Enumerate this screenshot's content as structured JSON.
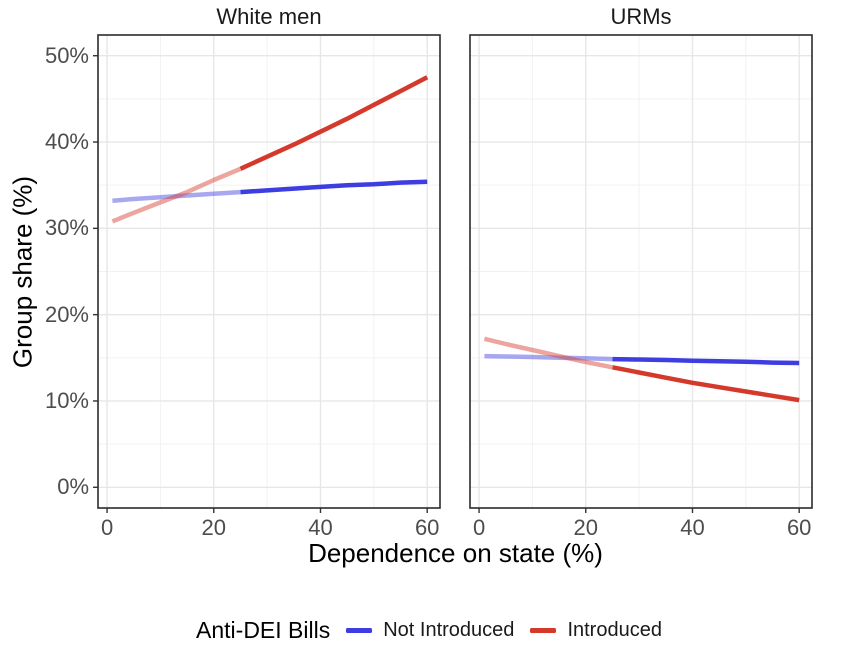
{
  "chart_data": {
    "type": "line",
    "xlabel": "Dependence on state (%)",
    "ylabel": "Group share (%)",
    "xlim": [
      -1.7,
      62.4
    ],
    "ylim": [
      -2.4,
      52.4
    ],
    "grid": true,
    "legend_position": "bottom",
    "x_ticks": [
      {
        "value": 0,
        "label": "0"
      },
      {
        "value": 20,
        "label": "20"
      },
      {
        "value": 40,
        "label": "40"
      },
      {
        "value": 60,
        "label": "60"
      }
    ],
    "x_minor": [
      10,
      30,
      50
    ],
    "y_ticks": [
      {
        "value": 0,
        "label": "0%"
      },
      {
        "value": 10,
        "label": "10%"
      },
      {
        "value": 20,
        "label": "20%"
      },
      {
        "value": 30,
        "label": "30%"
      },
      {
        "value": 40,
        "label": "40%"
      },
      {
        "value": 50,
        "label": "50%"
      }
    ],
    "y_minor": [
      5,
      15,
      25,
      35,
      45
    ],
    "facets": [
      {
        "title": "White men",
        "series": [
          {
            "name": "Not Introduced",
            "color": "#3D3DE1",
            "points": [
              [
                1,
                33.2
              ],
              [
                5,
                33.4
              ],
              [
                10,
                33.6
              ],
              [
                15,
                33.8
              ],
              [
                20,
                34.0
              ],
              [
                25,
                34.2
              ],
              [
                30,
                34.4
              ],
              [
                35,
                34.6
              ],
              [
                40,
                34.8
              ],
              [
                45,
                35.0
              ],
              [
                50,
                35.1
              ],
              [
                55,
                35.3
              ],
              [
                60,
                35.4
              ]
            ]
          },
          {
            "name": "Introduced",
            "color": "#D5392B",
            "points": [
              [
                1,
                30.8
              ],
              [
                5,
                31.8
              ],
              [
                10,
                33.0
              ],
              [
                15,
                34.2
              ],
              [
                20,
                35.6
              ],
              [
                25,
                36.9
              ],
              [
                30,
                38.3
              ],
              [
                35,
                39.7
              ],
              [
                40,
                41.2
              ],
              [
                45,
                42.7
              ],
              [
                50,
                44.3
              ],
              [
                55,
                45.9
              ],
              [
                60,
                47.5
              ]
            ]
          }
        ]
      },
      {
        "title": "URMs",
        "series": [
          {
            "name": "Not Introduced",
            "color": "#3D3DE1",
            "points": [
              [
                1,
                15.2
              ],
              [
                5,
                15.15
              ],
              [
                10,
                15.1
              ],
              [
                15,
                15.0
              ],
              [
                20,
                14.95
              ],
              [
                25,
                14.85
              ],
              [
                30,
                14.8
              ],
              [
                35,
                14.75
              ],
              [
                40,
                14.65
              ],
              [
                45,
                14.6
              ],
              [
                50,
                14.55
              ],
              [
                55,
                14.45
              ],
              [
                60,
                14.4
              ]
            ]
          },
          {
            "name": "Introduced",
            "color": "#D5392B",
            "points": [
              [
                1,
                17.2
              ],
              [
                5,
                16.6
              ],
              [
                10,
                15.9
              ],
              [
                15,
                15.2
              ],
              [
                20,
                14.5
              ],
              [
                25,
                13.9
              ],
              [
                30,
                13.3
              ],
              [
                35,
                12.7
              ],
              [
                40,
                12.1
              ],
              [
                45,
                11.6
              ],
              [
                50,
                11.1
              ],
              [
                55,
                10.6
              ],
              [
                60,
                10.1
              ]
            ]
          }
        ]
      }
    ],
    "legend": {
      "title": "Anti-DEI Bills",
      "items": [
        {
          "label": "Not Introduced",
          "color": "#3D3DE1"
        },
        {
          "label": "Introduced",
          "color": "#D5392B"
        }
      ]
    },
    "style": {
      "solid_from_x": 25,
      "faded_opacity": 0.45,
      "line_width": 4.5,
      "grid_major_color": "#E7E7E7",
      "grid_minor_color": "#F2F2F2",
      "panel_border_color": "#2B2B2B",
      "tick_color": "#333333",
      "tick_label_color": "#4D4D4D",
      "facet_title_color": "#1A1A1A",
      "axis_title_color": "#000000",
      "background": "#FFFFFF"
    }
  }
}
